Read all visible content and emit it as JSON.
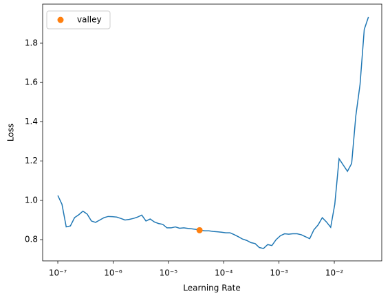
{
  "chart_data": {
    "type": "line",
    "xlabel": "Learning Rate",
    "ylabel": "Loss",
    "xscale": "log",
    "x": [
      1e-07,
      1.19e-07,
      1.42e-07,
      1.69e-07,
      2.01e-07,
      2.4e-07,
      2.85e-07,
      3.4e-07,
      4.05e-07,
      4.82e-07,
      5.74e-07,
      6.84e-07,
      8.15e-07,
      9.7e-07,
      1.16e-06,
      1.38e-06,
      1.64e-06,
      1.95e-06,
      2.33e-06,
      2.77e-06,
      3.3e-06,
      3.93e-06,
      4.68e-06,
      5.58e-06,
      6.64e-06,
      7.91e-06,
      9.42e-06,
      1.12e-05,
      1.34e-05,
      1.59e-05,
      1.9e-05,
      2.26e-05,
      2.69e-05,
      3.2e-05,
      3.81e-05,
      4.54e-05,
      5.41e-05,
      6.44e-05,
      7.67e-05,
      9.14e-05,
      0.000109,
      0.00013,
      0.000154,
      0.000184,
      0.000219,
      0.000261,
      0.00031,
      0.00037,
      0.00044,
      0.000524,
      0.000625,
      0.000744,
      0.000886,
      0.00106,
      0.00126,
      0.0015,
      0.00178,
      0.00212,
      0.00253,
      0.00301,
      0.00359,
      0.00427,
      0.00509,
      0.00606,
      0.00722,
      0.0086,
      0.0102,
      0.0122,
      0.0145,
      0.0173,
      0.0206,
      0.0245,
      0.0292,
      0.0348,
      0.0414
    ],
    "series": [
      {
        "color": "#1f77b4",
        "values": [
          1.025,
          0.98,
          0.865,
          0.87,
          0.912,
          0.927,
          0.945,
          0.93,
          0.895,
          0.888,
          0.9,
          0.912,
          0.918,
          0.917,
          0.915,
          0.908,
          0.9,
          0.903,
          0.908,
          0.915,
          0.925,
          0.895,
          0.905,
          0.89,
          0.882,
          0.878,
          0.86,
          0.86,
          0.865,
          0.858,
          0.86,
          0.857,
          0.855,
          0.852,
          0.848,
          0.845,
          0.845,
          0.842,
          0.84,
          0.838,
          0.835,
          0.835,
          0.826,
          0.815,
          0.803,
          0.796,
          0.785,
          0.78,
          0.76,
          0.755,
          0.775,
          0.77,
          0.8,
          0.82,
          0.83,
          0.828,
          0.83,
          0.83,
          0.825,
          0.815,
          0.805,
          0.85,
          0.875,
          0.912,
          0.89,
          0.863,
          0.98,
          1.212,
          1.18,
          1.148,
          1.188,
          1.43,
          1.59,
          1.87,
          1.933
        ]
      }
    ],
    "markers": [
      {
        "name": "valley",
        "color": "#ff7f0e",
        "x": [
          3.66e-05
        ],
        "values": [
          0.848
        ]
      }
    ],
    "legend": "upper left",
    "xlim": [
      5.32e-08,
      0.0721
    ],
    "ylim": [
      0.692,
      1.999
    ],
    "xticks": [
      {
        "value": 1e-07,
        "label": "10⁻⁷"
      },
      {
        "value": 1e-06,
        "label": "10⁻⁶"
      },
      {
        "value": 1e-05,
        "label": "10⁻⁵"
      },
      {
        "value": 0.0001,
        "label": "10⁻⁴"
      },
      {
        "value": 0.001,
        "label": "10⁻³"
      },
      {
        "value": 0.01,
        "label": "10⁻²"
      }
    ],
    "yticks": [
      0.8,
      {
        "value": 1,
        "label": "1.0"
      },
      1.2,
      1.4,
      1.6,
      1.8
    ]
  }
}
